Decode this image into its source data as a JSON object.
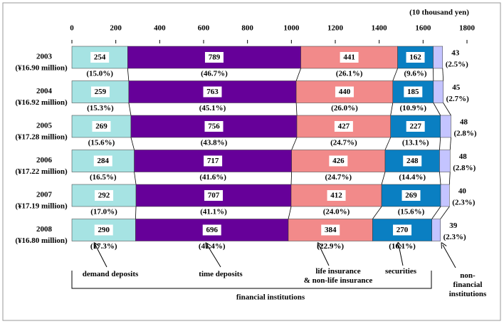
{
  "chart_data": {
    "type": "stacked-bar-horizontal",
    "unit_label": "(10 thousand yen)",
    "categories": [
      "2003",
      "2004",
      "2005",
      "2006",
      "2007",
      "2008"
    ],
    "category_sublabels": [
      "(¥16.90 million)",
      "(¥16.92 million)",
      "(¥17.28 million)",
      "(¥17.22 million)",
      "(¥17.19 million)",
      "(¥16.80 million)"
    ],
    "xlim": [
      0,
      1800
    ],
    "xticks": [
      0,
      200,
      400,
      600,
      800,
      1000,
      1200,
      1400,
      1600,
      1800
    ],
    "series": [
      {
        "name": "demand deposits",
        "color": "#a6e3e3",
        "values": [
          254,
          259,
          269,
          284,
          292,
          290
        ],
        "shares": [
          15.0,
          15.3,
          15.6,
          16.5,
          17.0,
          17.3
        ],
        "share_labels": [
          "(15.0%)",
          "(15.3%)",
          "(15.6%)",
          "(16.5%)",
          "(17.0%)",
          "(17.3%)"
        ]
      },
      {
        "name": "time deposits",
        "color": "#660099",
        "values": [
          789,
          763,
          756,
          717,
          707,
          696
        ],
        "shares": [
          46.7,
          45.1,
          43.8,
          41.6,
          41.1,
          41.4
        ],
        "share_labels": [
          "(46.7%)",
          "(45.1%)",
          "(43.8%)",
          "(41.6%)",
          "(41.1%)",
          "(41.4%)"
        ]
      },
      {
        "name": "life insurance\n& non-life insurance",
        "color": "#f28a8a",
        "values": [
          441,
          440,
          427,
          426,
          412,
          384
        ],
        "shares": [
          26.1,
          26.0,
          24.7,
          24.7,
          24.0,
          22.9
        ],
        "share_labels": [
          "(26.1%)",
          "(26.0%)",
          "(24.7%)",
          "(24.7%)",
          "(24.0%)",
          "(22.9%)"
        ]
      },
      {
        "name": "securities",
        "color": "#0a7fc2",
        "values": [
          162,
          185,
          227,
          248,
          269,
          270
        ],
        "shares": [
          9.6,
          10.9,
          13.1,
          14.4,
          15.6,
          16.1
        ],
        "share_labels": [
          "(9.6%)",
          "(10.9%)",
          "(13.1%)",
          "(14.4%)",
          "(15.6%)",
          "(16.1%)"
        ]
      },
      {
        "name": "non-financial\ninstitutions",
        "color": "#c4c4ff",
        "values": [
          43,
          45,
          48,
          48,
          40,
          39
        ],
        "shares": [
          2.5,
          2.7,
          2.8,
          2.8,
          2.3,
          2.3
        ],
        "share_labels": [
          "(2.5%)",
          "(2.7%)",
          "(2.8%)",
          "(2.8%)",
          "(2.3%)",
          "(2.3%)"
        ]
      }
    ],
    "group_label": "financial institutions"
  }
}
